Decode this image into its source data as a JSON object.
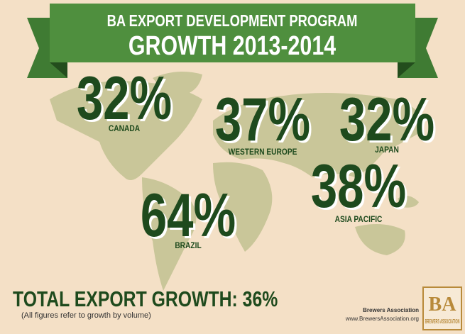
{
  "header": {
    "title": "BA EXPORT DEVELOPMENT PROGRAM",
    "subtitle": "GROWTH 2013-2014"
  },
  "regions": [
    {
      "value": "32%",
      "name": "CANADA"
    },
    {
      "value": "37%",
      "name": "WESTERN EUROPE"
    },
    {
      "value": "32%",
      "name": "JAPAN"
    },
    {
      "value": "38%",
      "name": "ASIA PACIFIC"
    },
    {
      "value": "64%",
      "name": "BRAZIL"
    }
  ],
  "total": "TOTAL EXPORT GROWTH: 36%",
  "footnote": "(All figures refer to growth by volume)",
  "logo": {
    "mark": "BA",
    "text": "BREWERS ASSOCIATION",
    "org": "Brewers Association",
    "url": "www.BrewersAssociation.org"
  }
}
